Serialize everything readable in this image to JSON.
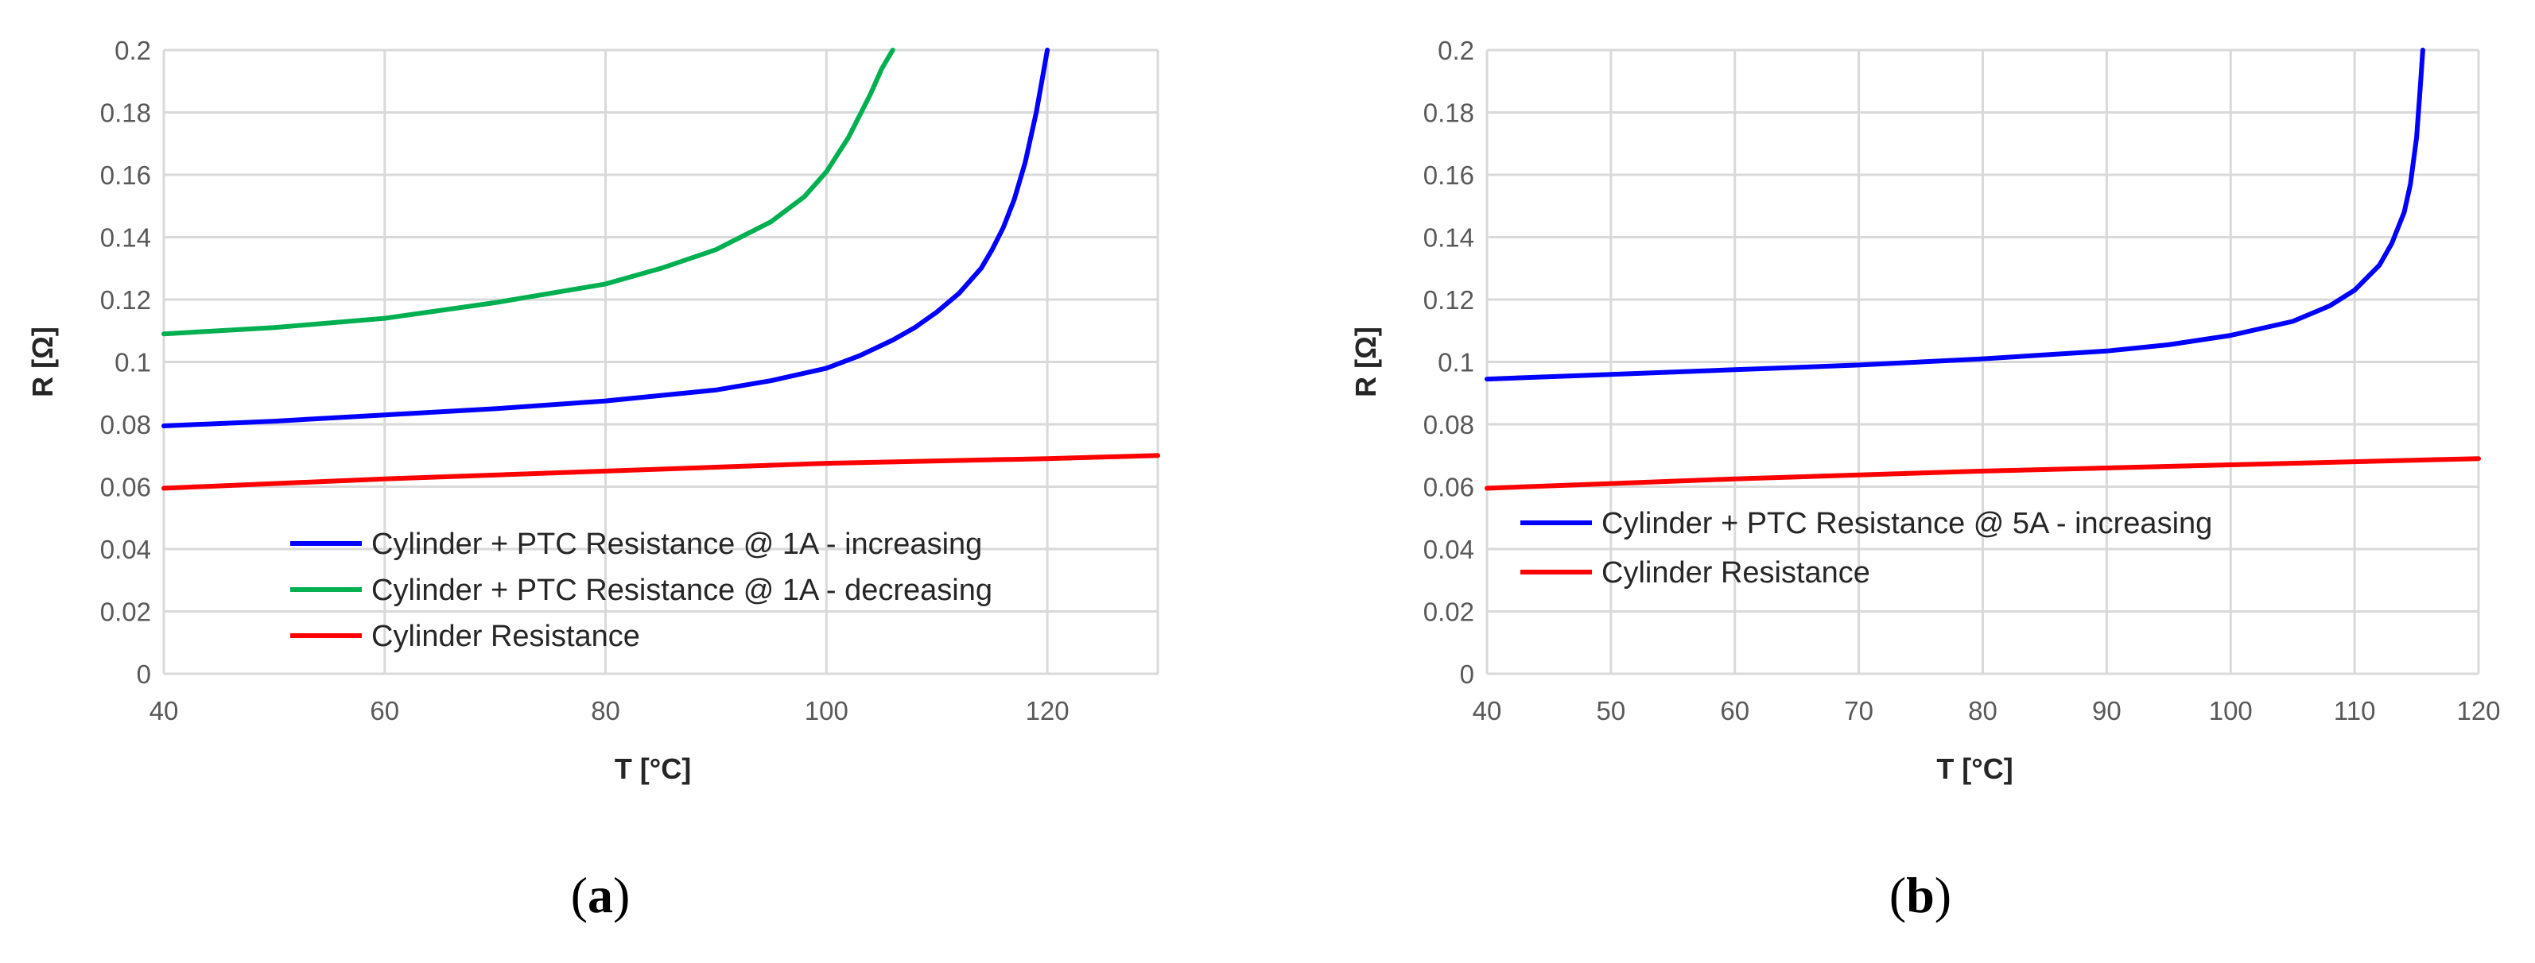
{
  "chart_data": [
    {
      "type": "line",
      "panel_label": "a",
      "xlabel": "T [°C]",
      "ylabel": "R [Ω]",
      "xlim": [
        40,
        130
      ],
      "ylim": [
        0,
        0.2
      ],
      "xticks": [
        40,
        60,
        80,
        100,
        120
      ],
      "yticks": [
        0,
        0.02,
        0.04,
        0.06,
        0.08,
        0.1,
        0.12,
        0.14,
        0.16,
        0.18,
        0.2
      ],
      "ytick_labels": [
        "0",
        "0.02",
        "0.04",
        "0.06",
        "0.08",
        "0.1",
        "0.12",
        "0.14",
        "0.16",
        "0.18",
        "0.2"
      ],
      "grid": true,
      "legend_position": "bottom-left",
      "series": [
        {
          "name": "Cylinder + PTC Resistance @ 1A - increasing",
          "color": "#0000ff",
          "x": [
            40,
            50,
            60,
            70,
            80,
            90,
            95,
            100,
            103,
            106,
            108,
            110,
            112,
            114,
            115,
            116,
            117,
            118,
            119,
            119.5,
            120
          ],
          "y": [
            0.0795,
            0.081,
            0.083,
            0.085,
            0.0875,
            0.091,
            0.094,
            0.098,
            0.102,
            0.107,
            0.111,
            0.116,
            0.122,
            0.13,
            0.136,
            0.143,
            0.152,
            0.164,
            0.18,
            0.19,
            0.2
          ]
        },
        {
          "name": "Cylinder + PTC Resistance @ 1A - decreasing",
          "color": "#00b050",
          "x": [
            40,
            50,
            60,
            70,
            80,
            85,
            90,
            95,
            98,
            100,
            102,
            104,
            105,
            106
          ],
          "y": [
            0.109,
            0.111,
            0.114,
            0.119,
            0.125,
            0.13,
            0.136,
            0.145,
            0.153,
            0.161,
            0.172,
            0.186,
            0.194,
            0.2
          ]
        },
        {
          "name": "Cylinder Resistance",
          "color": "#ff0000",
          "x": [
            40,
            60,
            80,
            100,
            120,
            130
          ],
          "y": [
            0.0595,
            0.0625,
            0.065,
            0.0675,
            0.069,
            0.07
          ]
        }
      ]
    },
    {
      "type": "line",
      "panel_label": "b",
      "xlabel": "T [°C]",
      "ylabel": "R [Ω]",
      "xlim": [
        40,
        120
      ],
      "ylim": [
        0,
        0.2
      ],
      "xticks": [
        40,
        50,
        60,
        70,
        80,
        90,
        100,
        110,
        120
      ],
      "yticks": [
        0,
        0.02,
        0.04,
        0.06,
        0.08,
        0.1,
        0.12,
        0.14,
        0.16,
        0.18,
        0.2
      ],
      "ytick_labels": [
        "0",
        "0.02",
        "0.04",
        "0.06",
        "0.08",
        "0.1",
        "0.12",
        "0.14",
        "0.16",
        "0.18",
        "0.2"
      ],
      "grid": true,
      "legend_position": "bottom-left",
      "series": [
        {
          "name": "Cylinder + PTC Resistance @ 5A - increasing",
          "color": "#0000ff",
          "x": [
            40,
            50,
            60,
            70,
            80,
            90,
            95,
            100,
            105,
            108,
            110,
            112,
            113,
            114,
            114.5,
            115,
            115.3,
            115.5
          ],
          "y": [
            0.0945,
            0.096,
            0.0975,
            0.099,
            0.101,
            0.1035,
            0.1055,
            0.1085,
            0.113,
            0.118,
            0.123,
            0.131,
            0.138,
            0.148,
            0.157,
            0.172,
            0.188,
            0.2
          ]
        },
        {
          "name": "Cylinder Resistance",
          "color": "#ff0000",
          "x": [
            40,
            60,
            80,
            100,
            120
          ],
          "y": [
            0.0595,
            0.0625,
            0.065,
            0.067,
            0.069
          ]
        }
      ]
    }
  ]
}
